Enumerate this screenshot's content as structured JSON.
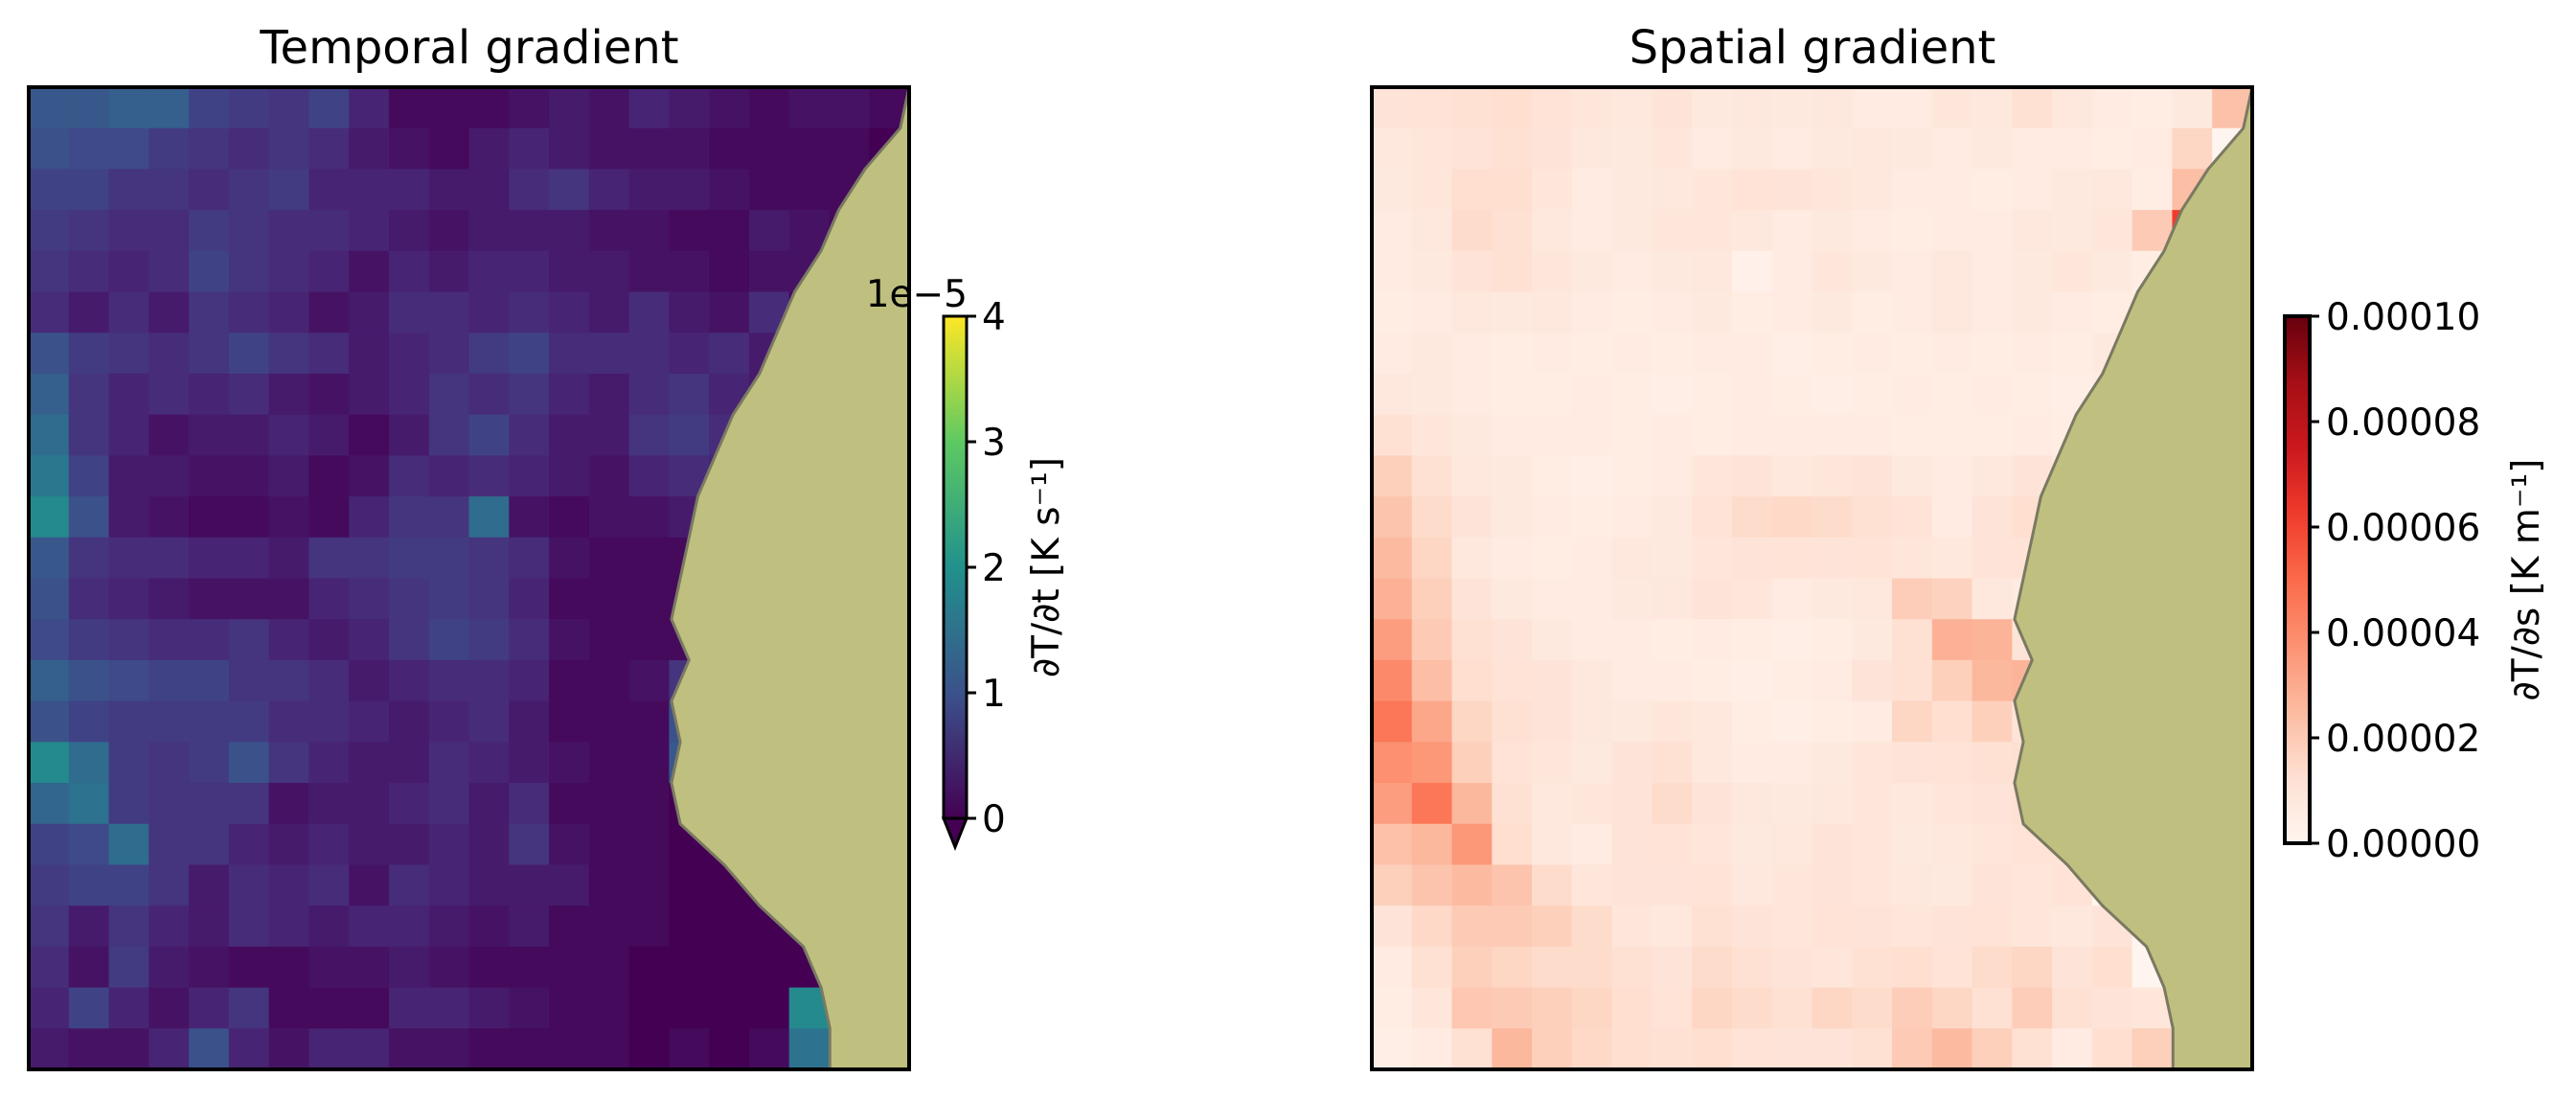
{
  "chart_data": [
    {
      "type": "heatmap",
      "title": "Temporal gradient",
      "colormap": "viridis",
      "colorbar": {
        "label": "∂T/∂t [K s⁻¹]",
        "ticks": [
          "0",
          "1",
          "2",
          "3",
          "4"
        ],
        "range": [
          0,
          4
        ],
        "offset_text": "1e−5",
        "extend": "min"
      },
      "grid_shape": [
        24,
        22
      ],
      "values_1e5": [
        [
          1.1,
          1.1,
          1.2,
          1.2,
          0.8,
          0.7,
          0.6,
          0.8,
          0.4,
          0.1,
          0.1,
          0.1,
          0.2,
          0.3,
          0.2,
          0.4,
          0.3,
          0.2,
          0.1,
          0.2,
          0.2,
          0.1
        ],
        [
          1.0,
          0.9,
          0.9,
          0.7,
          0.6,
          0.5,
          0.6,
          0.5,
          0.3,
          0.2,
          0.1,
          0.3,
          0.4,
          0.3,
          0.2,
          0.2,
          0.2,
          0.1,
          0.1,
          0.1,
          0.1,
          0.0
        ],
        [
          0.8,
          0.8,
          0.6,
          0.6,
          0.5,
          0.6,
          0.7,
          0.4,
          0.4,
          0.4,
          0.3,
          0.3,
          0.5,
          0.6,
          0.4,
          0.3,
          0.3,
          0.2,
          0.1,
          0.1,
          0.1,
          0.0
        ],
        [
          0.7,
          0.6,
          0.5,
          0.5,
          0.7,
          0.6,
          0.5,
          0.5,
          0.4,
          0.3,
          0.2,
          0.3,
          0.3,
          0.3,
          0.2,
          0.2,
          0.1,
          0.1,
          0.3,
          0.2,
          0.1,
          0.0
        ],
        [
          0.6,
          0.5,
          0.4,
          0.5,
          0.8,
          0.6,
          0.5,
          0.4,
          0.2,
          0.4,
          0.3,
          0.4,
          0.4,
          0.3,
          0.3,
          0.2,
          0.2,
          0.1,
          0.2,
          0.2,
          0.1,
          0.0
        ],
        [
          0.5,
          0.3,
          0.5,
          0.3,
          0.6,
          0.5,
          0.4,
          0.2,
          0.3,
          0.5,
          0.5,
          0.4,
          0.5,
          0.4,
          0.3,
          0.5,
          0.3,
          0.2,
          0.5,
          0.1,
          0.1,
          0.0
        ],
        [
          1.0,
          0.7,
          0.6,
          0.5,
          0.6,
          0.8,
          0.6,
          0.5,
          0.3,
          0.4,
          0.5,
          0.7,
          0.8,
          0.5,
          0.5,
          0.5,
          0.4,
          0.5,
          0.3,
          0.1,
          0.0,
          0.0
        ],
        [
          1.2,
          0.6,
          0.4,
          0.5,
          0.4,
          0.5,
          0.3,
          0.2,
          0.3,
          0.4,
          0.6,
          0.5,
          0.6,
          0.4,
          0.3,
          0.5,
          0.6,
          0.4,
          0.3,
          0.1,
          0.0,
          0.0
        ],
        [
          1.4,
          0.6,
          0.4,
          0.2,
          0.3,
          0.3,
          0.4,
          0.3,
          0.1,
          0.3,
          0.6,
          0.8,
          0.5,
          0.3,
          0.3,
          0.6,
          0.7,
          0.5,
          0.2,
          0.1,
          0.0,
          0.0
        ],
        [
          1.6,
          0.8,
          0.3,
          0.3,
          0.2,
          0.2,
          0.3,
          0.1,
          0.2,
          0.5,
          0.4,
          0.5,
          0.4,
          0.3,
          0.2,
          0.4,
          0.5,
          0.4,
          0.1,
          0.0,
          0.0,
          0.0
        ],
        [
          1.9,
          1.0,
          0.3,
          0.2,
          0.1,
          0.1,
          0.2,
          0.1,
          0.4,
          0.6,
          0.6,
          1.4,
          0.2,
          0.1,
          0.2,
          0.2,
          0.3,
          0.2,
          1.0,
          0.0,
          0.0,
          0.0
        ],
        [
          1.1,
          0.6,
          0.5,
          0.5,
          0.4,
          0.4,
          0.3,
          0.6,
          0.6,
          0.7,
          0.7,
          0.6,
          0.5,
          0.2,
          0.1,
          0.1,
          0.1,
          0.1,
          0.1,
          0.0,
          0.0,
          0.0
        ],
        [
          1.0,
          0.5,
          0.4,
          0.3,
          0.2,
          0.2,
          0.2,
          0.4,
          0.5,
          0.6,
          0.7,
          0.6,
          0.4,
          0.1,
          0.1,
          0.1,
          0.1,
          0.1,
          0.0,
          0.0,
          0.0,
          0.0
        ],
        [
          0.9,
          0.7,
          0.6,
          0.5,
          0.5,
          0.6,
          0.4,
          0.3,
          0.4,
          0.6,
          0.8,
          0.7,
          0.5,
          0.2,
          0.1,
          0.1,
          0.1,
          0.2,
          0.0,
          0.0,
          0.0,
          0.0
        ],
        [
          1.2,
          1.0,
          0.9,
          0.8,
          0.8,
          0.6,
          0.6,
          0.5,
          0.3,
          0.4,
          0.5,
          0.5,
          0.4,
          0.1,
          0.1,
          0.2,
          0.6,
          0.0,
          0.0,
          0.0,
          0.0,
          0.0
        ],
        [
          1.0,
          0.8,
          0.7,
          0.7,
          0.7,
          0.7,
          0.5,
          0.5,
          0.4,
          0.3,
          0.4,
          0.5,
          0.3,
          0.1,
          0.1,
          0.1,
          1.0,
          0.0,
          0.0,
          0.0,
          0.0,
          0.0
        ],
        [
          1.9,
          1.4,
          0.7,
          0.6,
          0.7,
          1.0,
          0.6,
          0.4,
          0.3,
          0.3,
          0.5,
          0.4,
          0.3,
          0.2,
          0.1,
          0.1,
          1.1,
          0.0,
          0.0,
          0.0,
          0.0,
          0.0
        ],
        [
          1.3,
          1.5,
          0.7,
          0.6,
          0.6,
          0.6,
          0.2,
          0.3,
          0.3,
          0.4,
          0.5,
          0.3,
          0.5,
          0.1,
          0.1,
          0.1,
          0.0,
          0.0,
          0.0,
          0.0,
          0.0,
          0.0
        ],
        [
          0.8,
          0.9,
          1.4,
          0.6,
          0.6,
          0.4,
          0.3,
          0.4,
          0.3,
          0.3,
          0.4,
          0.3,
          0.6,
          0.2,
          0.1,
          0.1,
          0.0,
          0.0,
          0.0,
          0.0,
          0.0,
          0.0
        ],
        [
          0.7,
          0.8,
          0.8,
          0.6,
          0.3,
          0.5,
          0.4,
          0.5,
          0.2,
          0.5,
          0.4,
          0.3,
          0.3,
          0.3,
          0.1,
          0.1,
          0.0,
          0.0,
          0.0,
          0.0,
          0.0,
          0.0
        ],
        [
          0.6,
          0.3,
          0.6,
          0.4,
          0.3,
          0.5,
          0.4,
          0.3,
          0.4,
          0.4,
          0.3,
          0.2,
          0.3,
          0.1,
          0.1,
          0.1,
          0.0,
          0.0,
          0.0,
          0.0,
          0.0,
          0.0
        ],
        [
          0.5,
          0.2,
          0.7,
          0.3,
          0.2,
          0.1,
          0.1,
          0.2,
          0.2,
          0.3,
          0.2,
          0.1,
          0.1,
          0.1,
          0.1,
          0.0,
          0.0,
          0.0,
          0.0,
          0.0,
          0.0,
          0.0
        ],
        [
          0.4,
          0.8,
          0.4,
          0.2,
          0.4,
          0.6,
          0.1,
          0.1,
          0.1,
          0.4,
          0.4,
          0.3,
          0.2,
          0.1,
          0.1,
          0.0,
          0.0,
          0.0,
          0.0,
          1.9,
          0.0,
          0.0
        ],
        [
          0.3,
          0.2,
          0.2,
          0.4,
          1.0,
          0.4,
          0.2,
          0.4,
          0.4,
          0.2,
          0.2,
          0.1,
          0.1,
          0.1,
          0.1,
          0.0,
          0.1,
          0.0,
          0.1,
          1.5,
          0.0,
          0.0
        ]
      ],
      "coastline_x_fraction": [
        1.0,
        0.99,
        0.95,
        0.92,
        0.9,
        0.87,
        0.85,
        0.83,
        0.8,
        0.78,
        0.76,
        0.75,
        0.74,
        0.73,
        0.75,
        0.73,
        0.74,
        0.73,
        0.74,
        0.79,
        0.83,
        0.88,
        0.9,
        0.91,
        0.91
      ]
    },
    {
      "type": "heatmap",
      "title": "Spatial gradient",
      "colormap": "Reds",
      "colorbar": {
        "label": "∂T/∂s [K m⁻¹]",
        "ticks": [
          "0.00000",
          "0.00002",
          "0.00004",
          "0.00006",
          "0.00008",
          "0.00010"
        ],
        "range": [
          0,
          0.0001
        ]
      },
      "grid_shape": [
        24,
        22
      ],
      "values_1e5": [
        [
          1.0,
          1.1,
          1.2,
          1.3,
          1.1,
          0.9,
          0.8,
          1.0,
          0.7,
          0.8,
          0.7,
          0.8,
          0.6,
          0.6,
          0.9,
          0.8,
          1.2,
          0.8,
          0.6,
          0.5,
          0.7,
          2.3
        ],
        [
          0.8,
          0.9,
          1.0,
          1.2,
          1.0,
          0.8,
          0.7,
          0.9,
          0.6,
          0.7,
          0.6,
          0.7,
          0.8,
          0.7,
          0.6,
          0.7,
          0.6,
          0.6,
          0.5,
          0.6,
          1.6,
          0.0
        ],
        [
          0.7,
          0.9,
          1.3,
          1.3,
          0.9,
          0.6,
          0.7,
          0.8,
          0.9,
          1.1,
          1.0,
          0.9,
          0.8,
          0.6,
          0.6,
          0.5,
          0.6,
          0.7,
          0.8,
          0.5,
          2.4,
          0.0
        ],
        [
          0.6,
          0.8,
          1.4,
          1.2,
          0.8,
          0.6,
          0.7,
          0.9,
          0.9,
          0.8,
          0.6,
          0.7,
          0.6,
          0.5,
          0.6,
          0.6,
          0.8,
          0.7,
          0.9,
          2.0,
          6.2,
          0.0
        ],
        [
          0.6,
          0.7,
          1.0,
          1.2,
          0.9,
          0.7,
          0.6,
          0.7,
          0.8,
          0.3,
          0.6,
          0.9,
          0.7,
          0.6,
          0.8,
          0.6,
          0.7,
          0.9,
          0.7,
          0.5,
          0.6,
          0.0
        ],
        [
          0.5,
          0.6,
          0.8,
          0.7,
          0.8,
          0.6,
          0.5,
          0.6,
          0.7,
          0.5,
          0.6,
          0.7,
          0.5,
          0.6,
          0.8,
          0.6,
          0.7,
          0.6,
          0.5,
          0.5,
          0.0,
          0.0
        ],
        [
          0.6,
          0.7,
          0.6,
          0.5,
          0.6,
          0.5,
          0.6,
          0.5,
          0.6,
          0.6,
          0.4,
          0.5,
          0.6,
          0.5,
          0.6,
          0.5,
          0.6,
          0.5,
          0.7,
          0.5,
          0.0,
          0.0
        ],
        [
          0.8,
          0.7,
          0.6,
          0.5,
          0.5,
          0.6,
          0.5,
          0.4,
          0.5,
          0.6,
          0.5,
          0.4,
          0.5,
          0.6,
          0.5,
          0.6,
          0.5,
          0.4,
          0.5,
          0.4,
          0.0,
          0.0
        ],
        [
          1.2,
          0.9,
          0.7,
          0.6,
          0.6,
          0.6,
          0.5,
          0.6,
          0.5,
          0.6,
          0.6,
          0.6,
          0.6,
          0.5,
          0.5,
          0.5,
          0.6,
          0.5,
          0.7,
          0.0,
          0.0,
          0.0
        ],
        [
          1.8,
          1.2,
          0.8,
          0.7,
          0.5,
          0.4,
          0.5,
          0.6,
          0.9,
          1.0,
          0.8,
          0.9,
          1.0,
          0.7,
          0.6,
          0.8,
          1.0,
          0.8,
          0.7,
          0.0,
          0.0,
          0.0
        ],
        [
          2.2,
          1.4,
          1.0,
          0.7,
          0.6,
          0.5,
          0.6,
          0.7,
          1.1,
          1.4,
          1.5,
          1.4,
          1.2,
          1.1,
          0.6,
          1.0,
          1.3,
          0.9,
          1.0,
          3.1,
          0.0,
          0.0
        ],
        [
          2.5,
          1.6,
          0.8,
          0.6,
          0.5,
          0.6,
          0.8,
          0.7,
          0.9,
          1.0,
          1.1,
          1.0,
          1.1,
          0.9,
          0.8,
          1.0,
          1.1,
          0.9,
          0.9,
          0.0,
          0.0,
          0.0
        ],
        [
          2.8,
          1.8,
          1.0,
          0.7,
          0.6,
          0.6,
          0.7,
          0.8,
          1.0,
          0.9,
          0.6,
          0.7,
          0.8,
          1.9,
          1.7,
          0.8,
          0.6,
          0.8,
          0.0,
          0.0,
          0.0,
          0.0
        ],
        [
          3.4,
          2.0,
          1.2,
          1.0,
          0.7,
          0.6,
          0.6,
          0.5,
          0.6,
          0.5,
          0.4,
          0.5,
          0.7,
          1.2,
          2.8,
          2.7,
          1.0,
          0.9,
          0.0,
          0.0,
          0.0,
          0.0
        ],
        [
          4.0,
          2.4,
          1.3,
          1.1,
          1.0,
          0.8,
          0.6,
          0.6,
          0.5,
          0.4,
          0.5,
          0.6,
          1.0,
          1.2,
          1.8,
          2.6,
          2.7,
          0.0,
          0.0,
          0.0,
          0.0,
          0.0
        ],
        [
          4.6,
          3.1,
          1.6,
          1.2,
          1.0,
          0.8,
          0.7,
          0.9,
          0.8,
          0.5,
          0.4,
          0.5,
          0.6,
          1.6,
          1.3,
          1.8,
          1.0,
          0.0,
          0.0,
          0.0,
          0.0,
          0.0
        ],
        [
          3.8,
          3.6,
          1.8,
          1.1,
          0.9,
          0.7,
          1.0,
          1.2,
          0.8,
          0.6,
          0.6,
          0.7,
          0.9,
          1.0,
          1.1,
          1.2,
          1.3,
          0.0,
          0.0,
          0.0,
          0.0,
          0.0
        ],
        [
          3.4,
          4.6,
          2.6,
          1.2,
          0.8,
          0.9,
          1.0,
          1.4,
          1.0,
          0.8,
          0.7,
          0.8,
          0.9,
          0.8,
          0.9,
          1.0,
          1.2,
          0.0,
          0.0,
          0.0,
          0.0,
          0.0
        ],
        [
          2.3,
          2.6,
          3.6,
          1.3,
          0.8,
          0.6,
          1.0,
          1.1,
          0.9,
          0.7,
          0.8,
          1.0,
          0.9,
          0.7,
          0.8,
          0.9,
          1.1,
          1.0,
          0.0,
          0.0,
          0.0,
          0.0
        ],
        [
          1.8,
          2.2,
          2.5,
          2.2,
          1.4,
          0.9,
          1.0,
          1.0,
          1.1,
          0.8,
          0.9,
          1.0,
          0.9,
          0.8,
          0.7,
          1.0,
          0.9,
          1.1,
          0.0,
          0.0,
          0.0,
          0.0
        ],
        [
          1.0,
          1.5,
          2.0,
          2.0,
          1.8,
          1.4,
          0.9,
          0.8,
          1.2,
          1.0,
          0.9,
          1.1,
          1.0,
          0.9,
          1.0,
          1.1,
          0.9,
          0.8,
          1.0,
          0.0,
          0.0,
          0.0
        ],
        [
          0.6,
          1.2,
          1.8,
          1.6,
          1.4,
          1.4,
          1.2,
          1.0,
          1.4,
          1.2,
          1.0,
          0.9,
          1.2,
          1.3,
          1.1,
          1.4,
          1.6,
          1.0,
          1.3,
          0.0,
          0.0,
          0.0
        ],
        [
          0.5,
          0.9,
          2.1,
          2.0,
          1.8,
          1.6,
          1.3,
          1.1,
          1.6,
          1.4,
          1.2,
          1.6,
          1.4,
          1.9,
          1.6,
          1.2,
          1.9,
          1.2,
          1.0,
          0.9,
          3.1,
          0.0
        ],
        [
          0.4,
          0.6,
          1.2,
          2.6,
          1.8,
          1.5,
          1.3,
          1.2,
          1.3,
          1.1,
          1.0,
          1.0,
          1.2,
          2.0,
          2.5,
          1.8,
          1.2,
          0.6,
          1.3,
          1.8,
          0.0,
          0.0
        ]
      ],
      "coastline_x_fraction": [
        1.0,
        0.99,
        0.95,
        0.92,
        0.9,
        0.87,
        0.85,
        0.83,
        0.8,
        0.78,
        0.76,
        0.75,
        0.74,
        0.73,
        0.75,
        0.73,
        0.74,
        0.73,
        0.74,
        0.79,
        0.83,
        0.88,
        0.9,
        0.91,
        0.91
      ]
    }
  ],
  "colors": {
    "land": "#bfbf80",
    "coastline": "#7a7a62",
    "frame": "#000000"
  }
}
